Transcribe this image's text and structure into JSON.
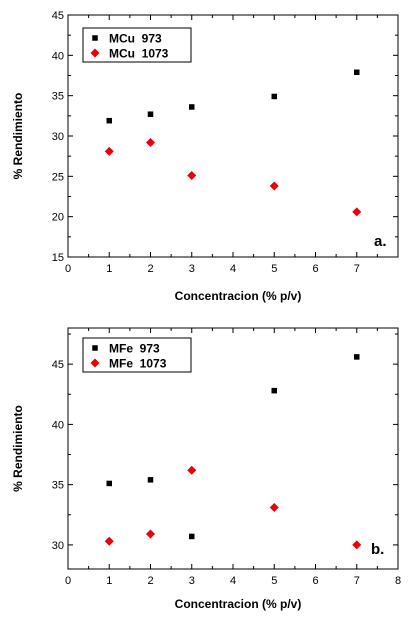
{
  "chart_data": [
    {
      "type": "scatter",
      "panel_label": "a.",
      "xlabel": "Concentracion (% p/v)",
      "ylabel": "% Rendimiento",
      "xlim": [
        0,
        8
      ],
      "ylim": [
        15,
        45
      ],
      "xticks": [
        0,
        1,
        2,
        3,
        4,
        5,
        6,
        7
      ],
      "yticks": [
        15,
        20,
        25,
        30,
        35,
        40,
        45
      ],
      "legend_position": "top-left",
      "grid": false,
      "series": [
        {
          "name": "MCu  973",
          "marker": "square",
          "color": "#000000",
          "x": [
            1,
            2,
            3,
            5,
            7
          ],
          "y": [
            31.9,
            32.7,
            33.6,
            34.9,
            37.9
          ]
        },
        {
          "name": "MCu  1073",
          "marker": "diamond",
          "color": "#e8000b",
          "x": [
            1,
            2,
            3,
            5,
            7
          ],
          "y": [
            28.1,
            29.2,
            25.1,
            23.8,
            20.6
          ]
        }
      ]
    },
    {
      "type": "scatter",
      "panel_label": "b.",
      "xlabel": "Concentracion (% p/v)",
      "ylabel": "% Rendimiento",
      "xlim": [
        0,
        8
      ],
      "ylim": [
        28,
        48
      ],
      "xticks": [
        0,
        1,
        2,
        3,
        4,
        5,
        6,
        7,
        8
      ],
      "yticks": [
        30,
        35,
        40,
        45
      ],
      "legend_position": "top-left",
      "grid": false,
      "series": [
        {
          "name": "MFe  973",
          "marker": "square",
          "color": "#000000",
          "x": [
            1,
            2,
            3,
            5,
            7
          ],
          "y": [
            35.1,
            35.4,
            30.7,
            42.8,
            45.6
          ]
        },
        {
          "name": "MFe  1073",
          "marker": "diamond",
          "color": "#e8000b",
          "x": [
            1,
            2,
            3,
            5,
            7
          ],
          "y": [
            30.3,
            30.9,
            36.2,
            33.1,
            30.0
          ]
        }
      ]
    }
  ]
}
